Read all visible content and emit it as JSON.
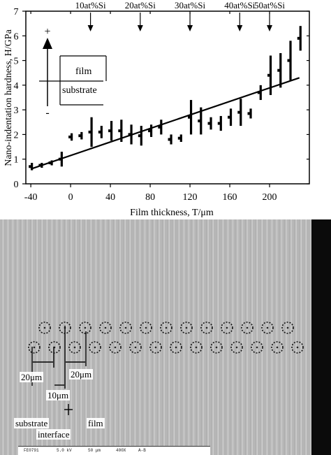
{
  "chart_data": {
    "type": "scatter",
    "title": "",
    "xlabel": "Film thickness, T/μm",
    "ylabel": "Nano-indentation hardness, H/GPa",
    "xlim": [
      -45,
      240
    ],
    "ylim": [
      0,
      7
    ],
    "xticks": [
      "-40",
      "0",
      "40",
      "80",
      "120",
      "160",
      "200"
    ],
    "xtick_values": [
      -40,
      0,
      40,
      80,
      120,
      160,
      200
    ],
    "yticks": [
      "0",
      "1",
      "2",
      "3",
      "4",
      "5",
      "6",
      "7"
    ],
    "ytick_values": [
      0,
      1,
      2,
      3,
      4,
      5,
      6,
      7
    ],
    "annotations": [
      {
        "text": "10at%Si",
        "x": 20
      },
      {
        "text": "20at%Si",
        "x": 70
      },
      {
        "text": "30at%Si",
        "x": 120
      },
      {
        "text": "40at%Si",
        "x": 170
      },
      {
        "text": "50at%Si",
        "x": 200
      }
    ],
    "inset": {
      "upper": "film",
      "lower": "substrate",
      "plus": "+",
      "minus": "-"
    },
    "trendline": {
      "x": [
        -40,
        230
      ],
      "y": [
        0.6,
        4.3
      ]
    },
    "series": [
      {
        "x": [
          -40,
          -30,
          -20,
          -10,
          0,
          10,
          20,
          30,
          40,
          50,
          60,
          70,
          80,
          90,
          100,
          110,
          120,
          130,
          140,
          150,
          160,
          170,
          180,
          190,
          200,
          210,
          220,
          230
        ],
        "y": [
          0.7,
          0.75,
          0.85,
          1.0,
          1.9,
          1.95,
          2.1,
          2.1,
          2.15,
          2.15,
          2.0,
          1.95,
          2.15,
          2.3,
          1.8,
          1.85,
          2.7,
          2.55,
          2.45,
          2.45,
          2.7,
          2.9,
          2.85,
          3.7,
          4.4,
          4.6,
          5.0,
          5.9
        ],
        "err": [
          0.15,
          0.1,
          0.1,
          0.3,
          0.15,
          0.15,
          0.6,
          0.25,
          0.4,
          0.45,
          0.4,
          0.4,
          0.25,
          0.3,
          0.2,
          0.15,
          0.7,
          0.55,
          0.25,
          0.3,
          0.35,
          0.55,
          0.2,
          0.3,
          0.8,
          0.7,
          0.8,
          0.5
        ]
      }
    ]
  },
  "micrograph": {
    "labels": {
      "spacing_row": "20μm",
      "spacing_between": "20μm",
      "offset": "10μm",
      "substrate": "substrate",
      "film": "film",
      "interface": "interface"
    },
    "status_bar": [
      "FE0791",
      "5.0 kV",
      "50 μm",
      "400X",
      "A-B"
    ]
  }
}
